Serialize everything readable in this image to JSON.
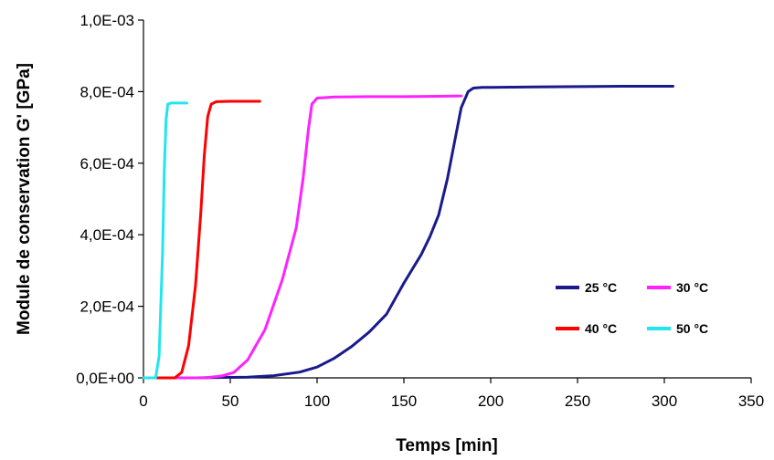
{
  "chart_data": {
    "type": "line",
    "title": "",
    "xlabel": "Temps [min]",
    "ylabel": "Module de conservation G' [GPa]",
    "xlim": [
      0,
      350
    ],
    "ylim": [
      0,
      0.001
    ],
    "x_ticks": [
      0,
      50,
      100,
      150,
      200,
      250,
      300,
      350
    ],
    "x_tick_labels": [
      "0",
      "50",
      "100",
      "150",
      "200",
      "250",
      "300",
      "350"
    ],
    "y_ticks": [
      0,
      0.0002,
      0.0004,
      0.0006,
      0.0008,
      0.001
    ],
    "y_tick_labels": [
      "0,0E+00",
      "2,0E-04",
      "4,0E-04",
      "6,0E-04",
      "8,0E-04",
      "1,0E-03"
    ],
    "grid": false,
    "legend_position": "bottom-right",
    "series": [
      {
        "name": "25 °C",
        "color": "#1a1a8c",
        "x": [
          0,
          30,
          60,
          75,
          90,
          100,
          110,
          120,
          130,
          140,
          150,
          160,
          165,
          170,
          175,
          180,
          183,
          187,
          190,
          195,
          200,
          225,
          250,
          275,
          300,
          305
        ],
        "y": [
          0.0,
          0.0,
          2e-06,
          6e-06,
          1.6e-05,
          3e-05,
          5.5e-05,
          8.8e-05,
          0.000128,
          0.000178,
          0.000265,
          0.000345,
          0.000395,
          0.000455,
          0.000555,
          0.00068,
          0.000755,
          0.0008,
          0.00081,
          0.000812,
          0.000812,
          0.000813,
          0.000814,
          0.000815,
          0.000815,
          0.000815
        ]
      },
      {
        "name": "30 °C",
        "color": "#ff22ff",
        "x": [
          0,
          35,
          45,
          52,
          60,
          70,
          80,
          88,
          92,
          95,
          97,
          100,
          110,
          130,
          150,
          170,
          183
        ],
        "y": [
          0.0,
          0.0,
          5e-06,
          1.5e-05,
          5e-05,
          0.000135,
          0.000275,
          0.00042,
          0.00056,
          0.000695,
          0.000765,
          0.000782,
          0.000785,
          0.000786,
          0.000786,
          0.000787,
          0.000788
        ]
      },
      {
        "name": "40 °C",
        "color": "#ff0000",
        "x": [
          0,
          18,
          22,
          26,
          30,
          33,
          35,
          37,
          39,
          42,
          50,
          60,
          67
        ],
        "y": [
          0.0,
          0.0,
          1.5e-05,
          9e-05,
          0.00026,
          0.00046,
          0.00062,
          0.00073,
          0.000765,
          0.000772,
          0.000773,
          0.000773,
          0.000773
        ]
      },
      {
        "name": "50 °C",
        "color": "#22e5f0",
        "x": [
          0,
          7,
          9,
          11,
          12,
          13,
          14,
          16,
          20,
          25
        ],
        "y": [
          0.0,
          0.0,
          6e-05,
          0.00035,
          0.00058,
          0.00072,
          0.000765,
          0.000768,
          0.000768,
          0.000768
        ]
      }
    ]
  }
}
